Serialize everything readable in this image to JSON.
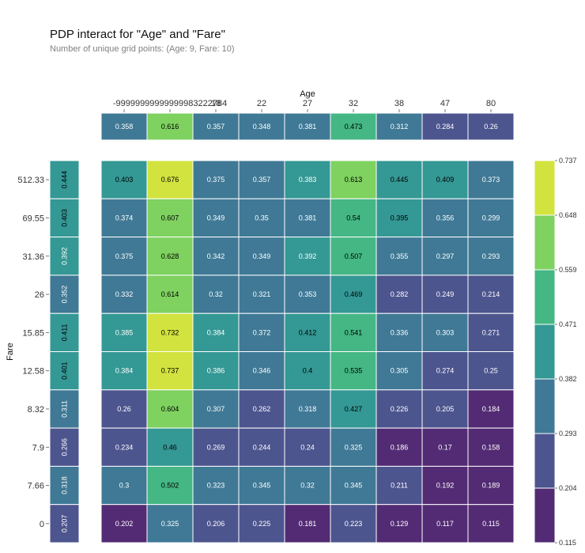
{
  "chart_data": {
    "type": "heatmap",
    "title": "PDP interact for \"Age\" and \"Fare\"",
    "subtitle": "Number of unique grid points: (Age: 9, Fare: 10)",
    "xlabel": "Age",
    "ylabel": "Fare",
    "x_categories": [
      "-99999999999999983222784",
      "18",
      "22",
      "27",
      "32",
      "38",
      "47",
      "80"
    ],
    "x_column_labels": [
      "",
      "-99999999999999983222784",
      "18",
      "22",
      "27",
      "32",
      "38",
      "47",
      "80"
    ],
    "y_categories": [
      "512.33",
      "69.55",
      "31.36",
      "26",
      "15.85",
      "12.58",
      "8.32",
      "7.9",
      "7.66",
      "0"
    ],
    "age_marginal": [
      0.358,
      0.616,
      0.357,
      0.348,
      0.381,
      0.473,
      0.312,
      0.284,
      0.26
    ],
    "fare_marginal": [
      0.444,
      0.403,
      0.392,
      0.352,
      0.411,
      0.401,
      0.311,
      0.266,
      0.318,
      0.207
    ],
    "values": [
      [
        0.403,
        0.676,
        0.375,
        0.357,
        0.383,
        0.613,
        0.445,
        0.409,
        0.373
      ],
      [
        0.374,
        0.607,
        0.349,
        0.35,
        0.381,
        0.54,
        0.395,
        0.356,
        0.299
      ],
      [
        0.375,
        0.628,
        0.342,
        0.349,
        0.392,
        0.507,
        0.355,
        0.297,
        0.293
      ],
      [
        0.332,
        0.614,
        0.32,
        0.321,
        0.353,
        0.469,
        0.282,
        0.249,
        0.214
      ],
      [
        0.385,
        0.732,
        0.384,
        0.372,
        0.412,
        0.541,
        0.336,
        0.303,
        0.271
      ],
      [
        0.384,
        0.737,
        0.386,
        0.346,
        0.4,
        0.535,
        0.305,
        0.274,
        0.25
      ],
      [
        0.26,
        0.604,
        0.307,
        0.262,
        0.318,
        0.427,
        0.226,
        0.205,
        0.184
      ],
      [
        0.234,
        0.46,
        0.269,
        0.244,
        0.24,
        0.325,
        0.186,
        0.17,
        0.158
      ],
      [
        0.3,
        0.502,
        0.323,
        0.345,
        0.32,
        0.345,
        0.211,
        0.192,
        0.189
      ],
      [
        0.202,
        0.325,
        0.206,
        0.225,
        0.181,
        0.223,
        0.129,
        0.117,
        0.115
      ]
    ],
    "colorbar_ticks": [
      "0.737",
      "0.648",
      "0.559",
      "0.471",
      "0.382",
      "0.293",
      "0.204",
      "0.115"
    ],
    "colorbar_range": [
      0.115,
      0.737
    ],
    "colormap": [
      "#440154",
      "#46327e",
      "#365c8d",
      "#277f8e",
      "#1fa187",
      "#4ac16d",
      "#a0da39",
      "#fde725"
    ],
    "grid": false,
    "legend": "right"
  }
}
